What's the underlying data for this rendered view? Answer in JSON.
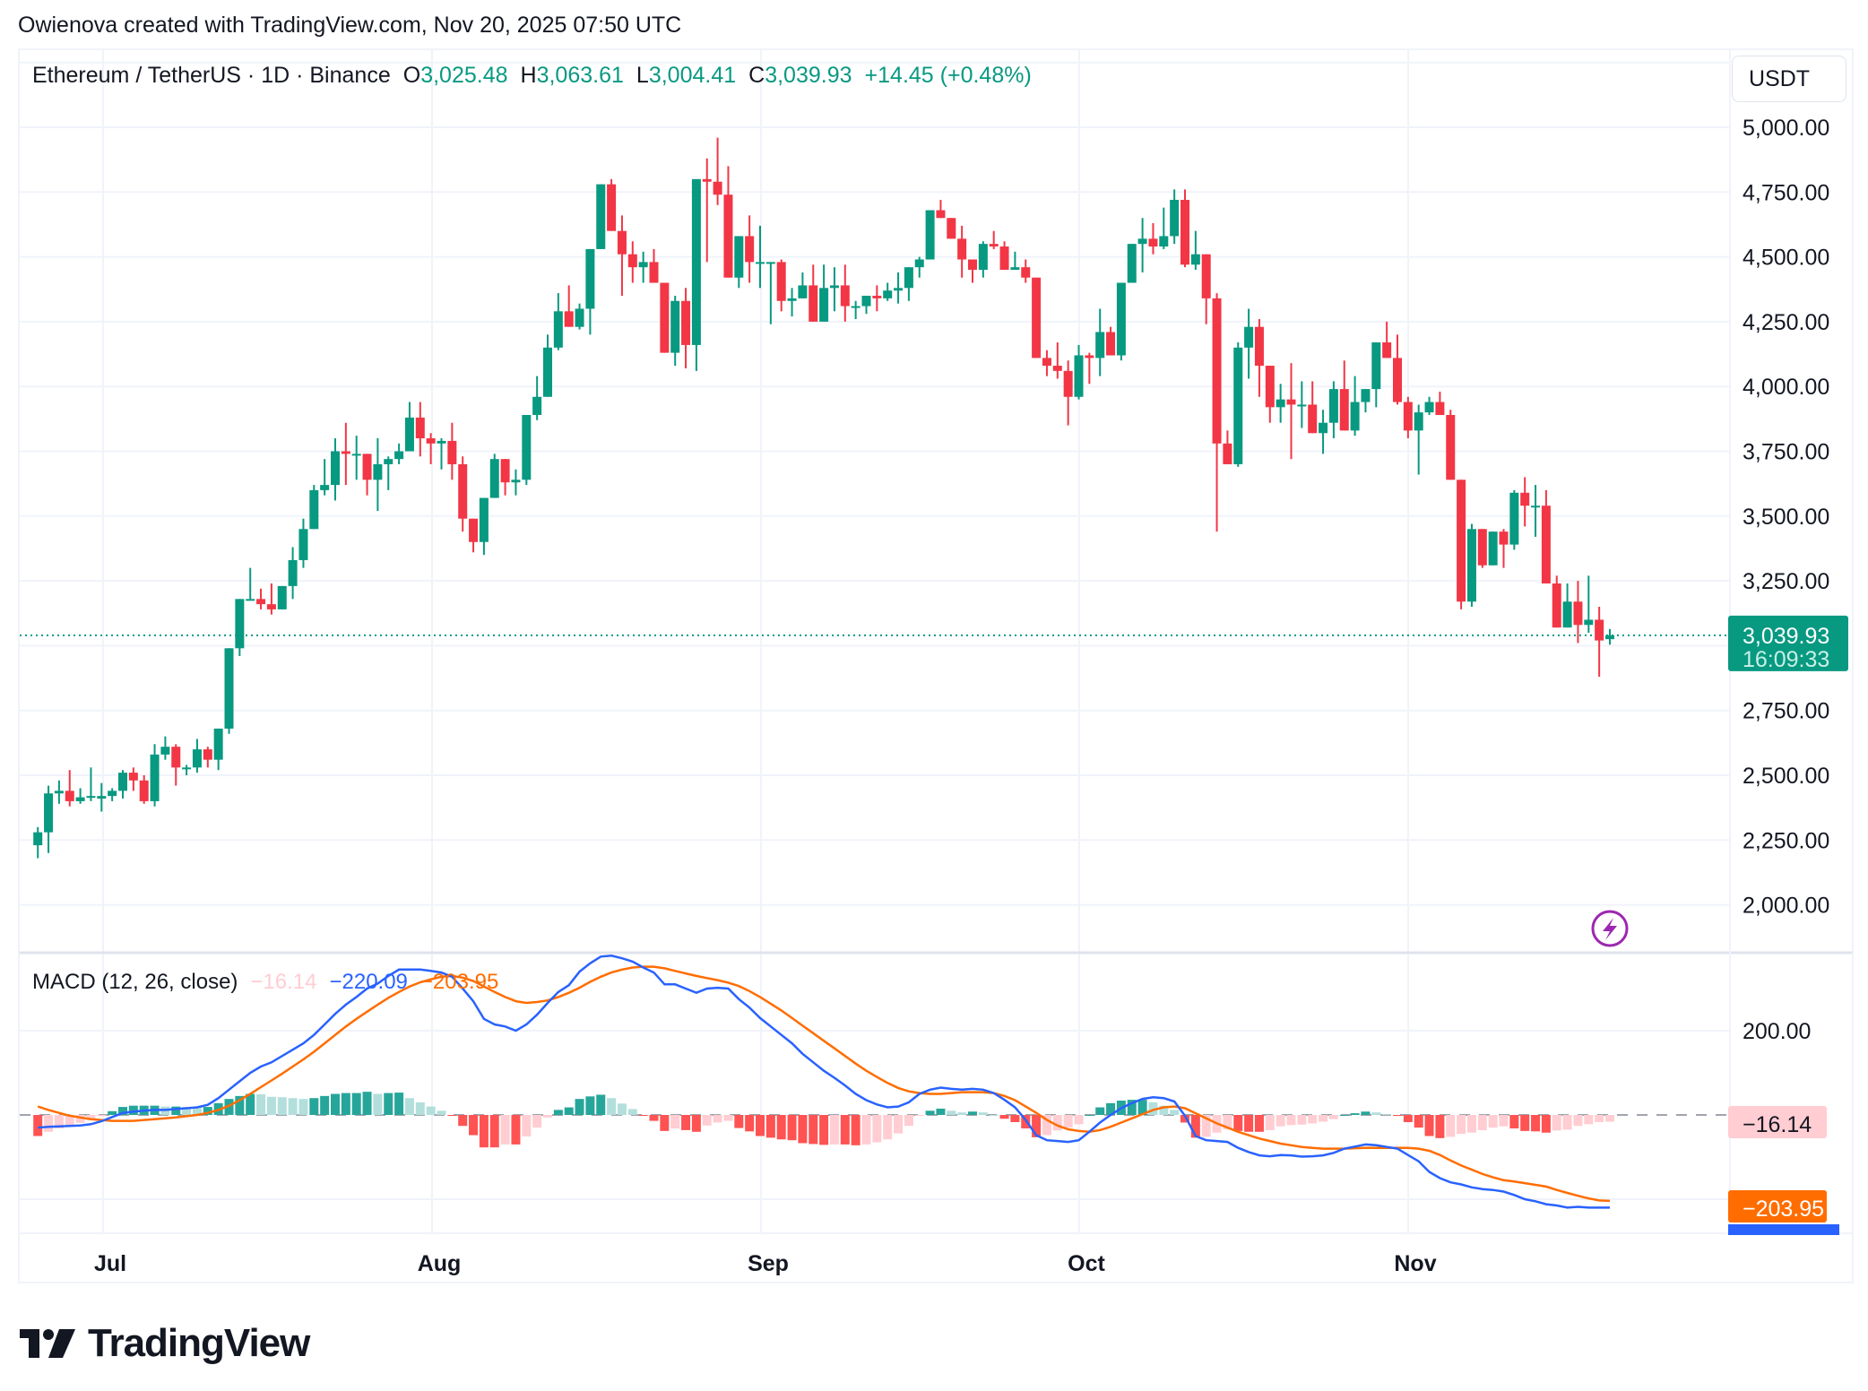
{
  "caption": "Owienova created with TradingView.com, Nov 20, 2025 07:50 UTC",
  "header": {
    "symbol": "Ethereum / TetherUS · 1D · Binance",
    "open_label": "O",
    "open": "3,025.48",
    "high_label": "H",
    "high": "3,063.61",
    "low_label": "L",
    "low": "3,004.41",
    "close_label": "C",
    "close": "3,039.93",
    "change": "+14.45 (+0.48%)",
    "currency": "USDT"
  },
  "price_axis": {
    "ticks": [
      "5,000.00",
      "4,750.00",
      "4,500.00",
      "4,250.00",
      "4,000.00",
      "3,750.00",
      "3,500.00",
      "3,250.00",
      "2,750.00",
      "2,500.00",
      "2,250.00",
      "2,000.00"
    ],
    "last_price": "3,039.93",
    "countdown": "16:09:33"
  },
  "macd": {
    "title": "MACD (12, 26, close)",
    "histogram": "−16.14",
    "macd": "−220.09",
    "signal": "−203.95",
    "axis_tick": "200.00"
  },
  "time_axis": [
    "Jul",
    "Aug",
    "Sep",
    "Oct",
    "Nov"
  ],
  "colors": {
    "up": "#089981",
    "down": "#F23645",
    "macd_line": "#2962FF",
    "signal_line": "#FF6D00",
    "hist_up_strong": "#26A69A",
    "hist_up_weak": "#B2DFDB",
    "hist_down_strong": "#FF5252",
    "hist_down_weak": "#FFCDD2",
    "lightning": "#9C27B0"
  },
  "brand": "TradingView",
  "chart_data": {
    "type": "candlestick",
    "title": "Ethereum / TetherUS · 1D · Binance",
    "xlabel": "",
    "ylabel": "USDT",
    "x_range": [
      "Jun 23, 2025",
      "Nov 20, 2025"
    ],
    "ylim": [
      1900,
      5250
    ],
    "grid": true,
    "ohlc": [
      [
        2230,
        2300,
        2180,
        2280
      ],
      [
        2280,
        2460,
        2200,
        2430
      ],
      [
        2430,
        2480,
        2390,
        2440
      ],
      [
        2440,
        2520,
        2380,
        2400
      ],
      [
        2400,
        2450,
        2390,
        2415
      ],
      [
        2415,
        2530,
        2400,
        2420
      ],
      [
        2410,
        2470,
        2360,
        2420
      ],
      [
        2420,
        2450,
        2400,
        2440
      ],
      [
        2440,
        2520,
        2410,
        2510
      ],
      [
        2510,
        2530,
        2440,
        2480
      ],
      [
        2480,
        2500,
        2390,
        2400
      ],
      [
        2400,
        2620,
        2380,
        2580
      ],
      [
        2580,
        2650,
        2560,
        2610
      ],
      [
        2610,
        2620,
        2460,
        2530
      ],
      [
        2530,
        2540,
        2500,
        2530
      ],
      [
        2530,
        2640,
        2510,
        2600
      ],
      [
        2600,
        2610,
        2530,
        2560
      ],
      [
        2560,
        2660,
        2520,
        2680
      ],
      [
        2680,
        2710,
        2660,
        2990
      ],
      [
        2990,
        3070,
        2960,
        3180
      ],
      [
        3180,
        3300,
        3180,
        3180
      ],
      [
        3180,
        3220,
        3140,
        3160
      ],
      [
        3160,
        3240,
        3120,
        3140
      ],
      [
        3140,
        3220,
        3150,
        3230
      ],
      [
        3230,
        3380,
        3180,
        3330
      ],
      [
        3330,
        3490,
        3300,
        3450
      ],
      [
        3450,
        3620,
        3500,
        3600
      ],
      [
        3600,
        3720,
        3580,
        3620
      ],
      [
        3620,
        3800,
        3560,
        3750
      ],
      [
        3750,
        3860,
        3620,
        3740
      ],
      [
        3740,
        3810,
        3640,
        3740
      ],
      [
        3740,
        3730,
        3580,
        3640
      ],
      [
        3640,
        3800,
        3520,
        3700
      ],
      [
        3700,
        3730,
        3600,
        3720
      ],
      [
        3720,
        3780,
        3700,
        3750
      ],
      [
        3750,
        3940,
        3750,
        3880
      ],
      [
        3880,
        3940,
        3730,
        3800
      ],
      [
        3800,
        3820,
        3700,
        3780
      ],
      [
        3780,
        3800,
        3680,
        3790
      ],
      [
        3790,
        3860,
        3640,
        3700
      ],
      [
        3700,
        3730,
        3440,
        3490
      ],
      [
        3490,
        3490,
        3360,
        3400
      ],
      [
        3400,
        3530,
        3350,
        3570
      ],
      [
        3570,
        3740,
        3580,
        3720
      ],
      [
        3720,
        3720,
        3580,
        3630
      ],
      [
        3630,
        3680,
        3580,
        3640
      ],
      [
        3640,
        3850,
        3620,
        3890
      ],
      [
        3890,
        4040,
        3870,
        3960
      ],
      [
        3960,
        4200,
        3960,
        4150
      ],
      [
        4150,
        4360,
        4140,
        4290
      ],
      [
        4290,
        4390,
        4240,
        4230
      ],
      [
        4230,
        4320,
        4220,
        4300
      ],
      [
        4300,
        4360,
        4200,
        4530
      ],
      [
        4530,
        4740,
        4530,
        4780
      ],
      [
        4780,
        4800,
        4640,
        4600
      ],
      [
        4600,
        4660,
        4350,
        4510
      ],
      [
        4510,
        4560,
        4400,
        4460
      ],
      [
        4460,
        4520,
        4400,
        4480
      ],
      [
        4480,
        4530,
        4420,
        4400
      ],
      [
        4400,
        4360,
        4190,
        4130
      ],
      [
        4130,
        4350,
        4080,
        4330
      ],
      [
        4330,
        4380,
        4070,
        4160
      ],
      [
        4160,
        4380,
        4060,
        4800
      ],
      [
        4800,
        4880,
        4480,
        4790
      ],
      [
        4790,
        4960,
        4700,
        4740
      ],
      [
        4740,
        4850,
        4460,
        4420
      ],
      [
        4420,
        4520,
        4380,
        4580
      ],
      [
        4580,
        4660,
        4400,
        4480
      ],
      [
        4480,
        4620,
        4380,
        4480
      ],
      [
        4480,
        4480,
        4240,
        4480
      ],
      [
        4480,
        4490,
        4290,
        4330
      ],
      [
        4330,
        4380,
        4270,
        4340
      ],
      [
        4340,
        4440,
        4350,
        4390
      ],
      [
        4390,
        4470,
        4400,
        4250
      ],
      [
        4250,
        4470,
        4260,
        4380
      ],
      [
        4380,
        4460,
        4290,
        4390
      ],
      [
        4390,
        4470,
        4250,
        4310
      ],
      [
        4310,
        4330,
        4260,
        4310
      ],
      [
        4310,
        4350,
        4280,
        4350
      ],
      [
        4350,
        4390,
        4290,
        4340
      ],
      [
        4340,
        4400,
        4330,
        4370
      ],
      [
        4370,
        4440,
        4320,
        4380
      ],
      [
        4380,
        4460,
        4330,
        4460
      ],
      [
        4460,
        4500,
        4420,
        4490
      ],
      [
        4490,
        4620,
        4510,
        4680
      ],
      [
        4680,
        4720,
        4660,
        4650
      ],
      [
        4650,
        4600,
        4580,
        4570
      ],
      [
        4570,
        4620,
        4420,
        4490
      ],
      [
        4490,
        4470,
        4400,
        4450
      ],
      [
        4450,
        4560,
        4420,
        4550
      ],
      [
        4550,
        4600,
        4530,
        4540
      ],
      [
        4540,
        4560,
        4450,
        4450
      ],
      [
        4450,
        4520,
        4460,
        4460
      ],
      [
        4460,
        4490,
        4400,
        4420
      ],
      [
        4420,
        4420,
        4140,
        4110
      ],
      [
        4110,
        4140,
        4040,
        4080
      ],
      [
        4080,
        4170,
        4030,
        4060
      ],
      [
        4060,
        4100,
        3850,
        3960
      ],
      [
        3960,
        4160,
        3950,
        4120
      ],
      [
        4120,
        4130,
        4010,
        4110
      ],
      [
        4110,
        4300,
        4040,
        4210
      ],
      [
        4210,
        4230,
        4120,
        4120
      ],
      [
        4120,
        4350,
        4100,
        4400
      ],
      [
        4400,
        4520,
        4420,
        4550
      ],
      [
        4550,
        4650,
        4440,
        4570
      ],
      [
        4570,
        4630,
        4510,
        4540
      ],
      [
        4540,
        4690,
        4530,
        4580
      ],
      [
        4580,
        4760,
        4550,
        4720
      ],
      [
        4720,
        4760,
        4460,
        4470
      ],
      [
        4470,
        4600,
        4450,
        4510
      ],
      [
        4510,
        4510,
        4240,
        4340
      ],
      [
        4340,
        4360,
        3440,
        3780
      ],
      [
        3780,
        3830,
        3700,
        3700
      ],
      [
        3700,
        4170,
        3690,
        4150
      ],
      [
        4150,
        4300,
        4030,
        4230
      ],
      [
        4230,
        4260,
        3960,
        4080
      ],
      [
        4080,
        4040,
        3860,
        3920
      ],
      [
        3920,
        4010,
        3860,
        3950
      ],
      [
        3950,
        4090,
        3720,
        3930
      ],
      [
        3930,
        4020,
        3840,
        3930
      ],
      [
        3930,
        4020,
        3840,
        3820
      ],
      [
        3820,
        3910,
        3740,
        3860
      ],
      [
        3860,
        4020,
        3800,
        3990
      ],
      [
        3990,
        4100,
        3840,
        3830
      ],
      [
        3830,
        4040,
        3810,
        3940
      ],
      [
        3940,
        3990,
        3900,
        3990
      ],
      [
        3990,
        4030,
        3920,
        4170
      ],
      [
        4170,
        4250,
        4130,
        4110
      ],
      [
        4110,
        4200,
        3930,
        3940
      ],
      [
        3940,
        3960,
        3800,
        3830
      ],
      [
        3830,
        3930,
        3660,
        3900
      ],
      [
        3900,
        3960,
        3890,
        3940
      ],
      [
        3940,
        3980,
        3890,
        3890
      ],
      [
        3890,
        3910,
        3700,
        3640
      ],
      [
        3640,
        3590,
        3140,
        3170
      ],
      [
        3170,
        3470,
        3150,
        3450
      ],
      [
        3450,
        3430,
        3300,
        3310
      ],
      [
        3310,
        3440,
        3320,
        3440
      ],
      [
        3440,
        3450,
        3300,
        3390
      ],
      [
        3390,
        3600,
        3370,
        3590
      ],
      [
        3590,
        3650,
        3460,
        3540
      ],
      [
        3540,
        3620,
        3420,
        3540
      ],
      [
        3540,
        3600,
        3300,
        3240
      ],
      [
        3240,
        3270,
        3080,
        3070
      ],
      [
        3070,
        3240,
        3110,
        3170
      ],
      [
        3170,
        3250,
        3010,
        3080
      ],
      [
        3080,
        3270,
        3050,
        3100
      ],
      [
        3100,
        3150,
        2880,
        3020
      ],
      [
        3025,
        3064,
        3004,
        3040
      ]
    ],
    "macd_series": {
      "macd": [
        -30,
        -28,
        -27,
        -26,
        -25,
        -22,
        -15,
        -5,
        5,
        8,
        10,
        12,
        12,
        14,
        16,
        18,
        24,
        40,
        60,
        80,
        100,
        115,
        125,
        140,
        155,
        170,
        190,
        215,
        240,
        262,
        280,
        300,
        312,
        330,
        345,
        345,
        345,
        342,
        338,
        328,
        300,
        270,
        228,
        215,
        210,
        200,
        215,
        238,
        266,
        292,
        308,
        340,
        360,
        376,
        378,
        372,
        364,
        350,
        338,
        310,
        310,
        300,
        290,
        300,
        302,
        300,
        275,
        255,
        230,
        210,
        190,
        170,
        145,
        125,
        105,
        88,
        70,
        50,
        35,
        25,
        18,
        20,
        30,
        50,
        60,
        65,
        62,
        60,
        62,
        60,
        52,
        36,
        18,
        -12,
        -48,
        -60,
        -62,
        -64,
        -60,
        -40,
        -18,
        0,
        16,
        28,
        38,
        42,
        40,
        32,
        -2,
        -50,
        -60,
        -62,
        -64,
        -78,
        -88,
        -96,
        -98,
        -95,
        -96,
        -99,
        -98,
        -96,
        -90,
        -80,
        -75,
        -70,
        -72,
        -76,
        -80,
        -95,
        -110,
        -135,
        -150,
        -160,
        -165,
        -172,
        -176,
        -178,
        -182,
        -190,
        -200,
        -205,
        -212,
        -215,
        -220,
        -218,
        -220,
        -220,
        -220
      ],
      "signal": [
        20,
        12,
        5,
        -2,
        -6,
        -10,
        -12,
        -14,
        -14,
        -14,
        -12,
        -10,
        -8,
        -6,
        -3,
        0,
        5,
        12,
        22,
        35,
        50,
        66,
        82,
        98,
        115,
        132,
        150,
        170,
        190,
        210,
        228,
        245,
        262,
        278,
        292,
        305,
        315,
        322,
        328,
        330,
        326,
        318,
        305,
        292,
        280,
        270,
        266,
        268,
        272,
        280,
        290,
        302,
        316,
        328,
        338,
        345,
        350,
        352,
        352,
        348,
        342,
        336,
        330,
        325,
        320,
        314,
        306,
        294,
        280,
        264,
        248,
        230,
        212,
        194,
        176,
        158,
        140,
        122,
        105,
        90,
        76,
        64,
        56,
        52,
        50,
        50,
        52,
        54,
        54,
        54,
        52,
        45,
        35,
        20,
        5,
        -12,
        -25,
        -34,
        -38,
        -40,
        -36,
        -28,
        -18,
        -8,
        2,
        12,
        18,
        20,
        16,
        4,
        -8,
        -20,
        -30,
        -40,
        -48,
        -56,
        -62,
        -68,
        -72,
        -76,
        -78,
        -80,
        -80,
        -80,
        -79,
        -78,
        -78,
        -78,
        -78,
        -78,
        -80,
        -85,
        -95,
        -108,
        -120,
        -130,
        -140,
        -148,
        -155,
        -158,
        -162,
        -166,
        -170,
        -178,
        -185,
        -192,
        -198,
        -203,
        -204
      ]
    }
  }
}
